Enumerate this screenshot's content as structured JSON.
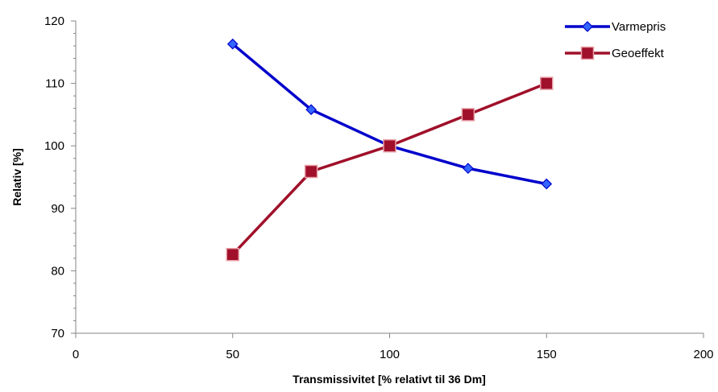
{
  "chart_data": {
    "type": "line",
    "title": "",
    "xlabel": "Transmissivitet [%  relativt til 36 Dm]",
    "ylabel": "Relativ  [%]",
    "xlim": [
      0,
      200
    ],
    "ylim": [
      70,
      120
    ],
    "xticks": [
      0,
      50,
      100,
      150,
      200
    ],
    "yticks": [
      70,
      80,
      90,
      100,
      110,
      120
    ],
    "grid": false,
    "legend_position": "top-right",
    "series": [
      {
        "name": "Varmepris",
        "color": "#0000CC",
        "marker": "diamond",
        "x": [
          50,
          75,
          100,
          125,
          150
        ],
        "y": [
          116.3,
          105.8,
          100,
          96.4,
          93.9
        ]
      },
      {
        "name": "Geoeffekt",
        "color": "#A0102A",
        "marker": "square",
        "x": [
          50,
          75,
          100,
          125,
          150
        ],
        "y": [
          82.6,
          95.9,
          100,
          105.0,
          110.0
        ]
      }
    ]
  }
}
